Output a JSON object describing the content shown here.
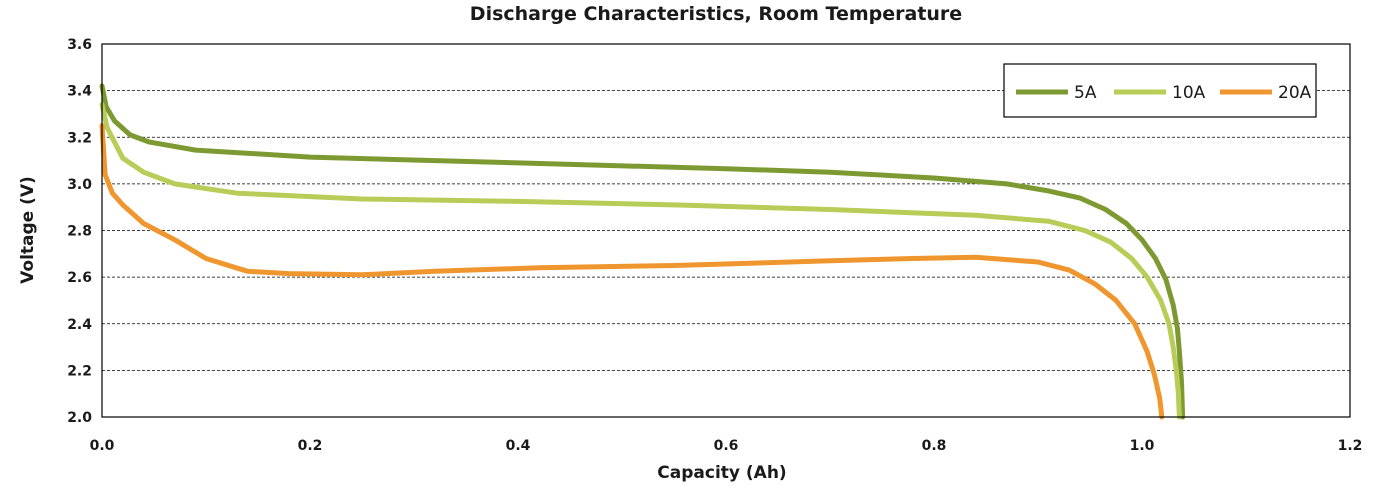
{
  "chart_data": {
    "type": "line",
    "title": "Discharge Characteristics, Room Temperature",
    "xlabel": "Capacity (Ah)",
    "ylabel": "Voltage (V)",
    "xlim": [
      0,
      1.2
    ],
    "ylim": [
      2.0,
      3.6
    ],
    "xticks": [
      "0.0",
      "0.2",
      "0.4",
      "0.6",
      "0.8",
      "1.0",
      "1.2"
    ],
    "yticks": [
      "2.0",
      "2.2",
      "2.4",
      "2.6",
      "2.8",
      "3.0",
      "3.2",
      "3.4",
      "3.6"
    ],
    "grid": true,
    "legend_position": "top-right",
    "series": [
      {
        "name": "5A",
        "color": "#7d9a32",
        "points": [
          [
            0.0,
            3.42
          ],
          [
            0.004,
            3.33
          ],
          [
            0.012,
            3.27
          ],
          [
            0.027,
            3.21
          ],
          [
            0.045,
            3.18
          ],
          [
            0.09,
            3.145
          ],
          [
            0.2,
            3.115
          ],
          [
            0.4,
            3.09
          ],
          [
            0.6,
            3.065
          ],
          [
            0.7,
            3.05
          ],
          [
            0.8,
            3.025
          ],
          [
            0.87,
            3.0
          ],
          [
            0.91,
            2.97
          ],
          [
            0.94,
            2.94
          ],
          [
            0.965,
            2.89
          ],
          [
            0.985,
            2.83
          ],
          [
            1.0,
            2.76
          ],
          [
            1.013,
            2.68
          ],
          [
            1.023,
            2.59
          ],
          [
            1.03,
            2.48
          ],
          [
            1.034,
            2.38
          ],
          [
            1.036,
            2.28
          ],
          [
            1.038,
            2.15
          ],
          [
            1.039,
            2.0
          ]
        ]
      },
      {
        "name": "10A",
        "color": "#b8cc58",
        "points": [
          [
            0.0,
            3.34
          ],
          [
            0.005,
            3.24
          ],
          [
            0.02,
            3.11
          ],
          [
            0.04,
            3.05
          ],
          [
            0.07,
            3.0
          ],
          [
            0.13,
            2.96
          ],
          [
            0.25,
            2.935
          ],
          [
            0.4,
            2.925
          ],
          [
            0.55,
            2.91
          ],
          [
            0.7,
            2.89
          ],
          [
            0.84,
            2.865
          ],
          [
            0.91,
            2.84
          ],
          [
            0.945,
            2.8
          ],
          [
            0.97,
            2.75
          ],
          [
            0.99,
            2.68
          ],
          [
            1.005,
            2.6
          ],
          [
            1.018,
            2.5
          ],
          [
            1.026,
            2.4
          ],
          [
            1.03,
            2.3
          ],
          [
            1.033,
            2.2
          ],
          [
            1.035,
            2.1
          ],
          [
            1.036,
            2.0
          ]
        ]
      },
      {
        "name": "20A",
        "color": "#f0962e",
        "points": [
          [
            0.0,
            3.25
          ],
          [
            0.003,
            3.04
          ],
          [
            0.01,
            2.96
          ],
          [
            0.02,
            2.91
          ],
          [
            0.04,
            2.83
          ],
          [
            0.07,
            2.76
          ],
          [
            0.1,
            2.68
          ],
          [
            0.14,
            2.625
          ],
          [
            0.18,
            2.615
          ],
          [
            0.25,
            2.61
          ],
          [
            0.32,
            2.625
          ],
          [
            0.42,
            2.64
          ],
          [
            0.55,
            2.65
          ],
          [
            0.7,
            2.67
          ],
          [
            0.78,
            2.68
          ],
          [
            0.84,
            2.685
          ],
          [
            0.9,
            2.665
          ],
          [
            0.93,
            2.63
          ],
          [
            0.955,
            2.57
          ],
          [
            0.975,
            2.5
          ],
          [
            0.993,
            2.4
          ],
          [
            1.005,
            2.28
          ],
          [
            1.012,
            2.18
          ],
          [
            1.017,
            2.08
          ],
          [
            1.019,
            2.0
          ]
        ]
      }
    ]
  }
}
